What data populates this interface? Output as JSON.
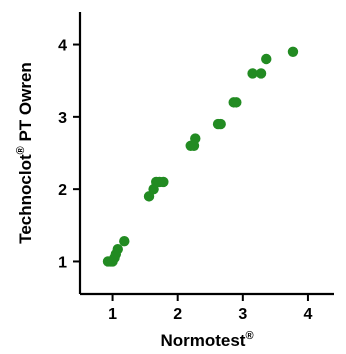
{
  "chart_data": {
    "type": "scatter",
    "title": "",
    "xlabel": "Normotest",
    "xlabel_superscript": "®",
    "ylabel": "Technoclot",
    "ylabel_superscript": "®",
    "ylabel_suffix": " PT Owren",
    "xlim": [
      0.5,
      4.4
    ],
    "ylim": [
      0.55,
      4.45
    ],
    "xticks": [
      1,
      2,
      3,
      4
    ],
    "yticks": [
      1,
      2,
      3,
      4
    ],
    "xtick_labels": [
      "1",
      "2",
      "3",
      "4"
    ],
    "ytick_labels": [
      "1",
      "2",
      "3",
      "4"
    ],
    "marker_color": "#228B22",
    "grid": false,
    "series": [
      {
        "points": [
          {
            "x": 0.93,
            "y": 1.0
          },
          {
            "x": 0.97,
            "y": 1.0
          },
          {
            "x": 1.0,
            "y": 1.0
          },
          {
            "x": 1.03,
            "y": 1.05
          },
          {
            "x": 1.05,
            "y": 1.1
          },
          {
            "x": 1.08,
            "y": 1.17
          },
          {
            "x": 1.18,
            "y": 1.28
          },
          {
            "x": 1.56,
            "y": 1.9
          },
          {
            "x": 1.63,
            "y": 2.0
          },
          {
            "x": 1.67,
            "y": 2.1
          },
          {
            "x": 1.72,
            "y": 2.1
          },
          {
            "x": 1.78,
            "y": 2.1
          },
          {
            "x": 2.2,
            "y": 2.6
          },
          {
            "x": 2.25,
            "y": 2.6
          },
          {
            "x": 2.27,
            "y": 2.7
          },
          {
            "x": 2.62,
            "y": 2.9
          },
          {
            "x": 2.66,
            "y": 2.9
          },
          {
            "x": 2.86,
            "y": 3.2
          },
          {
            "x": 2.9,
            "y": 3.2
          },
          {
            "x": 3.15,
            "y": 3.6
          },
          {
            "x": 3.28,
            "y": 3.6
          },
          {
            "x": 3.36,
            "y": 3.8
          },
          {
            "x": 3.77,
            "y": 3.9
          }
        ]
      }
    ]
  }
}
